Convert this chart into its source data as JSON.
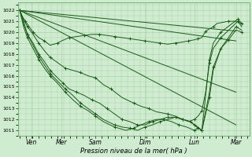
{
  "xlabel": "Pression niveau de la mer( hPa )",
  "ylim": [
    1010.5,
    1022.7
  ],
  "xlim": [
    -0.05,
    6.05
  ],
  "yticks": [
    1011,
    1012,
    1013,
    1014,
    1015,
    1016,
    1017,
    1018,
    1019,
    1020,
    1021,
    1022
  ],
  "xtick_labels": [
    "Ven",
    "Mer",
    "Sam",
    "Dim",
    "Lun",
    "Mar"
  ],
  "xtick_positions": [
    0.3,
    1.1,
    2.0,
    3.3,
    4.6,
    5.7
  ],
  "bg_color": "#d0ecd0",
  "grid_color": "#a8cca8",
  "line_color": "#1a5c1a",
  "lw": 0.7,
  "lines": [
    {
      "x": [
        0,
        5.7
      ],
      "y": [
        1022.0,
        1020.1
      ]
    },
    {
      "x": [
        0,
        5.7
      ],
      "y": [
        1022.0,
        1019.2
      ]
    },
    {
      "x": [
        0,
        5.7
      ],
      "y": [
        1022.0,
        1014.5
      ]
    },
    {
      "x": [
        0,
        5.7
      ],
      "y": [
        1022.0,
        1011.5
      ]
    },
    {
      "x": [
        0,
        0.05,
        0.15,
        0.25,
        0.35,
        0.5,
        0.65,
        0.8,
        1.0,
        1.1,
        1.3,
        1.5,
        1.7,
        1.9,
        2.1,
        2.3,
        2.5,
        2.7,
        2.9,
        3.1,
        3.3,
        3.5,
        3.7,
        3.9,
        4.1,
        4.3,
        4.45,
        4.6,
        4.7,
        4.8,
        4.9,
        5.0,
        5.1,
        5.2,
        5.5,
        5.7,
        5.85
      ],
      "y": [
        1022.0,
        1021.5,
        1021.0,
        1020.5,
        1020.0,
        1019.5,
        1019.2,
        1018.8,
        1019.0,
        1019.2,
        1019.5,
        1019.6,
        1019.7,
        1019.8,
        1019.8,
        1019.7,
        1019.6,
        1019.5,
        1019.4,
        1019.3,
        1019.2,
        1019.1,
        1019.0,
        1018.9,
        1019.0,
        1019.1,
        1019.2,
        1019.3,
        1019.4,
        1019.5,
        1020.1,
        1020.3,
        1020.5,
        1020.8,
        1021.0,
        1021.0,
        1020.8
      ]
    },
    {
      "x": [
        0,
        0.1,
        0.2,
        0.35,
        0.5,
        0.65,
        0.8,
        1.0,
        1.2,
        1.4,
        1.6,
        1.8,
        2.0,
        2.2,
        2.4,
        2.7,
        3.0,
        3.2,
        3.4,
        3.6,
        3.9,
        4.1,
        4.3,
        4.45,
        4.6,
        4.7,
        4.8,
        4.9,
        5.0,
        5.1,
        5.3,
        5.6,
        5.75,
        5.85
      ],
      "y": [
        1022.0,
        1021.2,
        1020.5,
        1019.8,
        1019.0,
        1018.3,
        1017.7,
        1017.2,
        1016.7,
        1016.5,
        1016.3,
        1016.0,
        1015.8,
        1015.2,
        1014.8,
        1014.0,
        1013.5,
        1013.2,
        1013.0,
        1012.7,
        1012.5,
        1012.3,
        1012.0,
        1011.8,
        1012.0,
        1012.3,
        1012.8,
        1014.5,
        1017.2,
        1018.5,
        1019.5,
        1020.5,
        1021.0,
        1020.5
      ]
    },
    {
      "x": [
        0,
        0.1,
        0.2,
        0.35,
        0.5,
        0.65,
        0.8,
        1.0,
        1.15,
        1.3,
        1.5,
        1.7,
        1.9,
        2.1,
        2.3,
        2.5,
        2.7,
        2.9,
        3.1,
        3.3,
        3.5,
        3.7,
        3.9,
        4.1,
        4.3,
        4.5,
        4.6,
        4.7,
        4.8,
        4.9,
        5.0,
        5.1,
        5.3,
        5.6,
        5.75,
        5.85
      ],
      "y": [
        1022.0,
        1020.8,
        1019.8,
        1019.0,
        1018.0,
        1017.3,
        1016.5,
        1015.8,
        1015.3,
        1014.8,
        1014.5,
        1014.2,
        1013.8,
        1013.5,
        1013.0,
        1012.5,
        1012.0,
        1011.8,
        1011.5,
        1011.5,
        1011.8,
        1012.0,
        1012.2,
        1012.2,
        1012.0,
        1011.8,
        1011.5,
        1011.3,
        1011.0,
        1014.2,
        1017.5,
        1019.0,
        1020.0,
        1020.8,
        1021.2,
        1020.8
      ]
    },
    {
      "x": [
        0,
        0.1,
        0.2,
        0.35,
        0.5,
        0.65,
        0.8,
        1.0,
        1.2,
        1.4,
        1.6,
        1.8,
        2.0,
        2.2,
        2.5,
        2.7,
        2.9,
        3.1,
        3.3,
        3.5,
        3.7,
        3.9,
        4.1,
        4.3,
        4.5,
        4.6,
        4.7,
        4.8,
        5.0,
        5.1,
        5.3,
        5.5,
        5.7,
        5.85
      ],
      "y": [
        1022.0,
        1021.0,
        1019.8,
        1018.8,
        1017.8,
        1017.0,
        1016.2,
        1015.5,
        1014.8,
        1014.2,
        1013.5,
        1013.0,
        1012.5,
        1012.0,
        1011.5,
        1011.3,
        1011.2,
        1011.0,
        1011.3,
        1011.5,
        1011.8,
        1012.0,
        1012.2,
        1012.0,
        1011.8,
        1011.5,
        1011.2,
        1011.0,
        1014.0,
        1016.5,
        1018.5,
        1019.5,
        1020.5,
        1020.2
      ]
    },
    {
      "x": [
        0,
        0.1,
        0.2,
        0.35,
        0.5,
        0.65,
        0.8,
        1.0,
        1.2,
        1.4,
        1.6,
        1.8,
        2.0,
        2.2,
        2.5,
        2.8,
        3.0,
        3.2,
        3.4,
        3.6,
        3.8,
        4.0,
        4.2,
        4.4,
        4.6,
        4.7,
        4.8,
        5.0,
        5.1,
        5.3,
        5.5,
        5.7,
        5.85
      ],
      "y": [
        1022.0,
        1020.5,
        1019.5,
        1018.5,
        1017.5,
        1016.7,
        1016.0,
        1015.3,
        1014.5,
        1013.8,
        1013.2,
        1012.8,
        1012.3,
        1011.8,
        1011.3,
        1011.0,
        1011.2,
        1011.5,
        1011.8,
        1012.0,
        1012.0,
        1011.8,
        1011.5,
        1011.3,
        1011.0,
        1011.2,
        1011.0,
        1014.5,
        1016.8,
        1018.5,
        1019.3,
        1020.2,
        1020.0
      ]
    }
  ]
}
